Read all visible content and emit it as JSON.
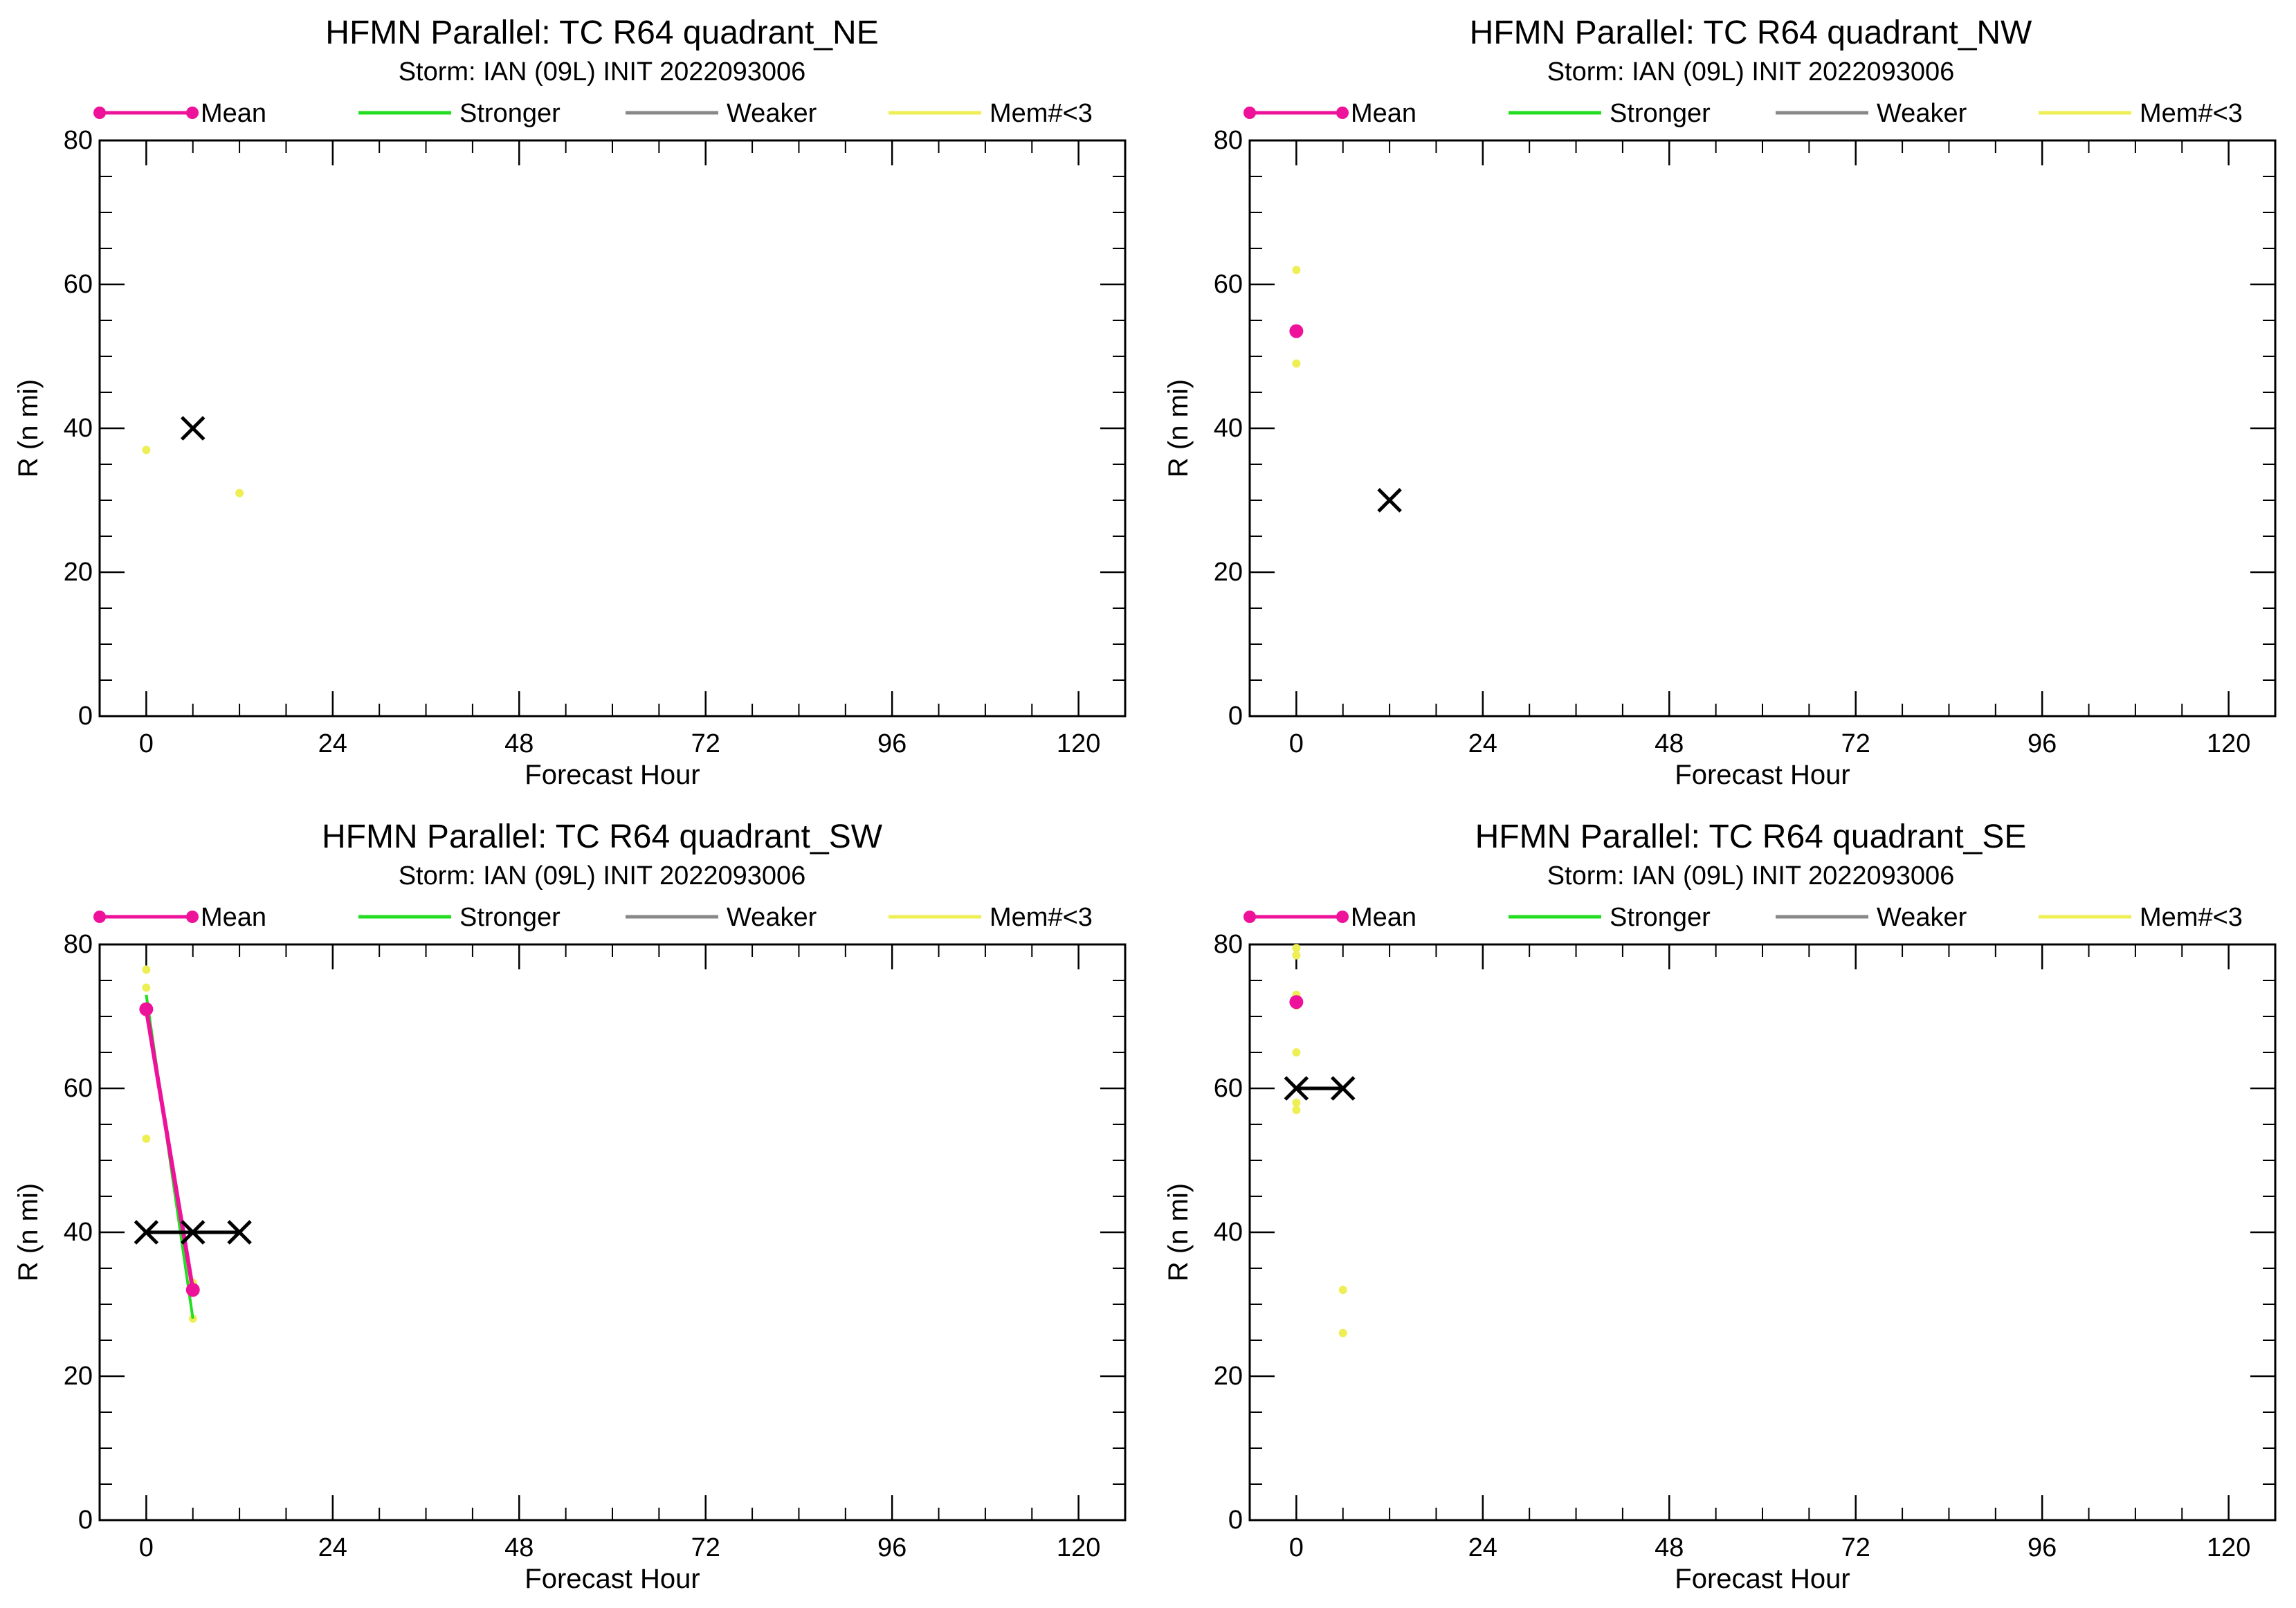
{
  "colors": {
    "mean": "#ee1199",
    "stronger": "#22dd22",
    "weaker": "#888888",
    "members": "#eeee55",
    "best_track": "#000000"
  },
  "legend": [
    "Mean",
    "Stronger",
    "Weaker",
    "Mem#<3"
  ],
  "chart_data": [
    {
      "id": "NE",
      "type": "scatter",
      "title": "HFMN Parallel: TC  R64 quadrant_NE",
      "subtitle": "Storm: IAN (09L) INIT 2022093006",
      "xlabel": "Forecast Hour",
      "ylabel": "R (n mi)",
      "xlim": [
        -6,
        126
      ],
      "ylim": [
        0,
        80
      ],
      "xticks": [
        0,
        24,
        48,
        72,
        96,
        120
      ],
      "yticks": [
        0,
        20,
        40,
        60,
        80
      ],
      "series": [
        {
          "name": "Mean",
          "points": []
        },
        {
          "name": "Stronger",
          "points": []
        },
        {
          "name": "Weaker",
          "points": []
        },
        {
          "name": "Mem#<3",
          "points": [
            [
              0,
              37
            ],
            [
              12,
              31
            ]
          ]
        }
      ],
      "best_track": [
        [
          6,
          40
        ]
      ]
    },
    {
      "id": "NW",
      "type": "scatter",
      "title": "HFMN Parallel: TC  R64 quadrant_NW",
      "subtitle": "Storm: IAN (09L) INIT 2022093006",
      "xlabel": "Forecast Hour",
      "ylabel": "R (n mi)",
      "xlim": [
        -6,
        126
      ],
      "ylim": [
        0,
        80
      ],
      "xticks": [
        0,
        24,
        48,
        72,
        96,
        120
      ],
      "yticks": [
        0,
        20,
        40,
        60,
        80
      ],
      "series": [
        {
          "name": "Mean",
          "points": [
            [
              0,
              53.5
            ]
          ]
        },
        {
          "name": "Stronger",
          "points": []
        },
        {
          "name": "Weaker",
          "points": []
        },
        {
          "name": "Mem#<3",
          "points": [
            [
              0,
              62
            ],
            [
              0,
              49
            ]
          ]
        }
      ],
      "best_track": [
        [
          12,
          30
        ]
      ]
    },
    {
      "id": "SW",
      "type": "line",
      "title": "HFMN Parallel: TC  R64 quadrant_SW",
      "subtitle": "Storm: IAN (09L) INIT 2022093006",
      "xlabel": "Forecast Hour",
      "ylabel": "R (n mi)",
      "xlim": [
        -6,
        126
      ],
      "ylim": [
        0,
        80
      ],
      "xticks": [
        0,
        24,
        48,
        72,
        96,
        120
      ],
      "yticks": [
        0,
        20,
        40,
        60,
        80
      ],
      "series": [
        {
          "name": "Mean",
          "points": [
            [
              0,
              71
            ],
            [
              6,
              32
            ]
          ]
        },
        {
          "name": "Stronger",
          "points": [
            [
              0,
              73
            ],
            [
              6,
              28
            ]
          ]
        },
        {
          "name": "Weaker",
          "points": []
        },
        {
          "name": "Mem#<3",
          "points": [
            [
              0,
              76.5
            ],
            [
              0,
              74
            ],
            [
              0,
              71
            ],
            [
              0,
              53
            ],
            [
              6,
              33
            ],
            [
              6,
              28
            ]
          ]
        }
      ],
      "best_track": [
        [
          0,
          40
        ],
        [
          6,
          40
        ],
        [
          12,
          40
        ]
      ]
    },
    {
      "id": "SE",
      "type": "scatter",
      "title": "HFMN Parallel: TC  R64 quadrant_SE",
      "subtitle": "Storm: IAN (09L) INIT 2022093006",
      "xlabel": "Forecast Hour",
      "ylabel": "R (n mi)",
      "xlim": [
        -6,
        126
      ],
      "ylim": [
        0,
        80
      ],
      "xticks": [
        0,
        24,
        48,
        72,
        96,
        120
      ],
      "yticks": [
        0,
        20,
        40,
        60,
        80
      ],
      "series": [
        {
          "name": "Mean",
          "points": [
            [
              0,
              72
            ]
          ]
        },
        {
          "name": "Stronger",
          "points": []
        },
        {
          "name": "Weaker",
          "points": []
        },
        {
          "name": "Mem#<3",
          "points": [
            [
              0,
              79.5
            ],
            [
              0,
              78.5
            ],
            [
              0,
              73
            ],
            [
              0,
              71.5
            ],
            [
              0,
              65
            ],
            [
              0,
              58
            ],
            [
              0,
              57
            ],
            [
              6,
              32
            ],
            [
              6,
              26
            ]
          ]
        }
      ],
      "best_track": [
        [
          0,
          60
        ],
        [
          6,
          60
        ]
      ]
    }
  ]
}
